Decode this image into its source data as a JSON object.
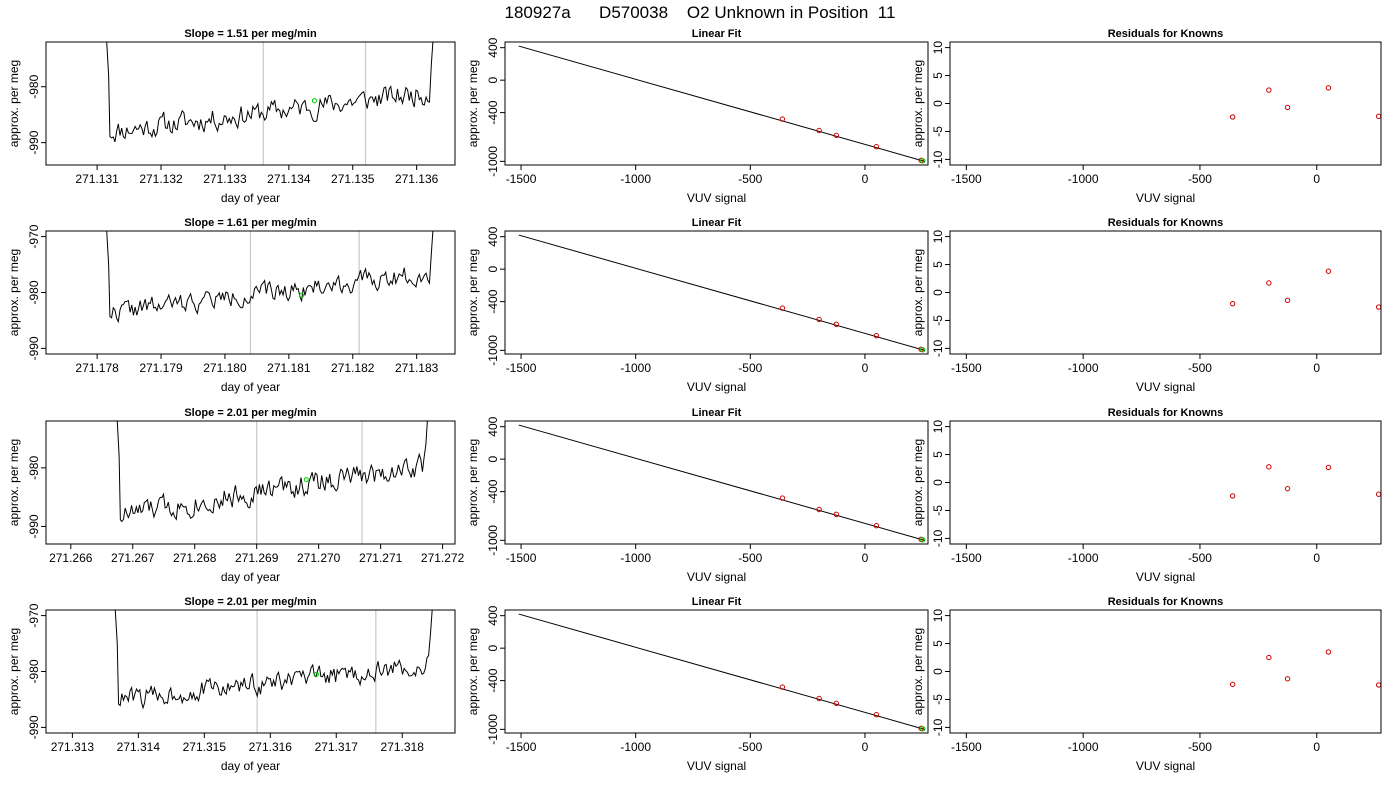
{
  "page_title": "180927a      D570038    O2 Unknown in Position  11",
  "colors": {
    "trace": "#000000",
    "marker": "#00cc00",
    "known_points": "#cc0000",
    "cycle_lines": "#c8c8c8",
    "fit_line": "#000000"
  },
  "chart_data": [
    {
      "row": 1,
      "panel": "timeseries",
      "type": "line",
      "title": "Slope =  1.51  per meg/min",
      "xlabel": "day of year",
      "ylabel": "approx. per meg",
      "xlim": [
        271.1302,
        271.1366
      ],
      "ylim": [
        -994,
        -972
      ],
      "xticks": [
        271.131,
        271.132,
        271.133,
        271.134,
        271.135,
        271.136
      ],
      "xtick_labels": [
        "271.131",
        "271.132",
        "271.133",
        "271.134",
        "271.135",
        "271.136"
      ],
      "yticks": [
        -980,
        -990
      ],
      "ytick_labels": [
        "-980",
        "-990"
      ],
      "cycle_lines": [
        271.1336,
        271.1352
      ],
      "trace": {
        "start": 271.1312,
        "end": 271.1362,
        "base": -988,
        "rise": 7,
        "amp": 3.2,
        "seed": 11
      },
      "marker": {
        "x": 271.1344,
        "y": -982.5
      }
    },
    {
      "row": 1,
      "panel": "fit",
      "type": "scatter",
      "title": "Linear Fit",
      "xlabel": "VUV signal",
      "ylabel": "approx. per meg",
      "xlim": [
        -1570,
        275
      ],
      "ylim": [
        -1045,
        470
      ],
      "xticks": [
        -1500,
        -1000,
        -500,
        0
      ],
      "xtick_labels": [
        "-1500",
        "-1000",
        "-500",
        "0"
      ],
      "yticks": [
        400,
        0,
        -400,
        -1000
      ],
      "ytick_labels": [
        "400",
        "0",
        "-400",
        "-1000"
      ],
      "fit_line": {
        "x": [
          -1510,
          260
        ],
        "y": [
          420,
          -1000
        ]
      },
      "knowns": {
        "x": [
          -360,
          -200,
          -125,
          50,
          245
        ],
        "y": [
          -480,
          -620,
          -680,
          -820,
          -988
        ]
      },
      "unknown": {
        "x": 252,
        "y": -993
      }
    },
    {
      "row": 1,
      "panel": "residuals",
      "type": "scatter",
      "title": "Residuals for Knowns",
      "xlabel": "VUV signal",
      "ylabel": "approx. per meg",
      "xlim": [
        -1570,
        275
      ],
      "ylim": [
        -11,
        11
      ],
      "xticks": [
        -1500,
        -1000,
        -500,
        0
      ],
      "xtick_labels": [
        "-1500",
        "-1000",
        "-500",
        "0"
      ],
      "yticks": [
        10,
        5,
        0,
        -5,
        -10
      ],
      "ytick_labels": [
        "10",
        "5",
        "0",
        "-5",
        "-10"
      ],
      "knowns": {
        "x": [
          -360,
          -205,
          -125,
          50,
          265
        ],
        "y": [
          -2.4,
          2.4,
          -0.7,
          2.8,
          -2.3
        ]
      }
    },
    {
      "row": 2,
      "panel": "timeseries",
      "type": "line",
      "title": "Slope =  1.61  per meg/min",
      "xlabel": "day of year",
      "ylabel": "approx. per meg",
      "xlim": [
        271.1772,
        271.1836
      ],
      "ylim": [
        -991,
        -969
      ],
      "xticks": [
        271.178,
        271.179,
        271.18,
        271.181,
        271.182,
        271.183
      ],
      "xtick_labels": [
        "271.178",
        "271.179",
        "271.180",
        "271.181",
        "271.182",
        "271.183"
      ],
      "yticks": [
        -970,
        -980,
        -990
      ],
      "ytick_labels": [
        "-970",
        "-980",
        "-990"
      ],
      "cycle_lines": [
        271.1804,
        271.1821
      ],
      "trace": {
        "start": 271.1782,
        "end": 271.1832,
        "base": -983.5,
        "rise": 7,
        "amp": 2.8,
        "seed": 22
      },
      "marker": {
        "x": 271.1812,
        "y": -980.5
      }
    },
    {
      "row": 2,
      "panel": "fit",
      "type": "scatter",
      "title": "Linear Fit",
      "xlabel": "VUV signal",
      "ylabel": "approx. per meg",
      "xlim": [
        -1570,
        275
      ],
      "ylim": [
        -1045,
        470
      ],
      "xticks": [
        -1500,
        -1000,
        -500,
        0
      ],
      "xtick_labels": [
        "-1500",
        "-1000",
        "-500",
        "0"
      ],
      "yticks": [
        400,
        0,
        -400,
        -1000
      ],
      "ytick_labels": [
        "400",
        "0",
        "-400",
        "-1000"
      ],
      "fit_line": {
        "x": [
          -1510,
          260
        ],
        "y": [
          420,
          -1000
        ]
      },
      "knowns": {
        "x": [
          -360,
          -200,
          -125,
          50,
          245
        ],
        "y": [
          -480,
          -620,
          -680,
          -820,
          -988
        ]
      },
      "unknown": {
        "x": 252,
        "y": -993
      }
    },
    {
      "row": 2,
      "panel": "residuals",
      "type": "scatter",
      "title": "Residuals for Knowns",
      "xlabel": "VUV signal",
      "ylabel": "approx. per meg",
      "xlim": [
        -1570,
        275
      ],
      "ylim": [
        -11,
        11
      ],
      "xticks": [
        -1500,
        -1000,
        -500,
        0
      ],
      "xtick_labels": [
        "-1500",
        "-1000",
        "-500",
        "0"
      ],
      "yticks": [
        10,
        5,
        0,
        -5,
        -10
      ],
      "ytick_labels": [
        "10",
        "5",
        "0",
        "-5",
        "-10"
      ],
      "knowns": {
        "x": [
          -360,
          -205,
          -125,
          50,
          265
        ],
        "y": [
          -2.0,
          1.7,
          -1.4,
          3.8,
          -2.6
        ]
      }
    },
    {
      "row": 3,
      "panel": "timeseries",
      "type": "line",
      "title": "Slope =  2.01  per meg/min",
      "xlabel": "day of year",
      "ylabel": "approx. per meg",
      "xlim": [
        271.2656,
        271.2722
      ],
      "ylim": [
        -993,
        -972
      ],
      "xticks": [
        271.266,
        271.267,
        271.268,
        271.269,
        271.27,
        271.271,
        271.272
      ],
      "xtick_labels": [
        "271.266",
        "271.267",
        "271.268",
        "271.269",
        "271.270",
        "271.271",
        "271.272"
      ],
      "yticks": [
        -980,
        -990
      ],
      "ytick_labels": [
        "-980",
        "-990"
      ],
      "cycle_lines": [
        271.269,
        271.2707
      ],
      "trace": {
        "start": 271.2668,
        "end": 271.2717,
        "base": -988,
        "rise": 8.5,
        "amp": 3.2,
        "seed": 33
      },
      "marker": {
        "x": 271.2698,
        "y": -982
      }
    },
    {
      "row": 3,
      "panel": "fit",
      "type": "scatter",
      "title": "Linear Fit",
      "xlabel": "VUV signal",
      "ylabel": "approx. per meg",
      "xlim": [
        -1570,
        275
      ],
      "ylim": [
        -1045,
        470
      ],
      "xticks": [
        -1500,
        -1000,
        -500,
        0
      ],
      "xtick_labels": [
        "-1500",
        "-1000",
        "-500",
        "0"
      ],
      "yticks": [
        400,
        0,
        -400,
        -1000
      ],
      "ytick_labels": [
        "400",
        "0",
        "-400",
        "-1000"
      ],
      "fit_line": {
        "x": [
          -1510,
          260
        ],
        "y": [
          420,
          -1000
        ]
      },
      "knowns": {
        "x": [
          -360,
          -200,
          -125,
          50,
          245
        ],
        "y": [
          -480,
          -620,
          -680,
          -820,
          -988
        ]
      },
      "unknown": {
        "x": 252,
        "y": -993
      }
    },
    {
      "row": 3,
      "panel": "residuals",
      "type": "scatter",
      "title": "Residuals for Knowns",
      "xlabel": "VUV signal",
      "ylabel": "approx. per meg",
      "xlim": [
        -1570,
        275
      ],
      "ylim": [
        -11,
        11
      ],
      "xticks": [
        -1500,
        -1000,
        -500,
        0
      ],
      "xtick_labels": [
        "-1500",
        "-1000",
        "-500",
        "0"
      ],
      "yticks": [
        10,
        5,
        0,
        -5,
        -10
      ],
      "ytick_labels": [
        "10",
        "5",
        "0",
        "-5",
        "-10"
      ],
      "knowns": {
        "x": [
          -360,
          -205,
          -125,
          50,
          265
        ],
        "y": [
          -2.4,
          2.8,
          -1.1,
          2.7,
          -2.1
        ]
      }
    },
    {
      "row": 4,
      "panel": "timeseries",
      "type": "line",
      "title": "Slope =  2.01  per meg/min",
      "xlabel": "day of year",
      "ylabel": "approx. per meg",
      "xlim": [
        271.3126,
        271.3188
      ],
      "ylim": [
        -991,
        -969
      ],
      "xticks": [
        271.313,
        271.314,
        271.315,
        271.316,
        271.317,
        271.318
      ],
      "xtick_labels": [
        "271.313",
        "271.314",
        "271.315",
        "271.316",
        "271.317",
        "271.318"
      ],
      "yticks": [
        -970,
        -980,
        -990
      ],
      "ytick_labels": [
        "-970",
        "-980",
        "-990"
      ],
      "cycle_lines": [
        271.3158,
        271.3176
      ],
      "trace": {
        "start": 271.3137,
        "end": 271.3184,
        "base": -985,
        "rise": 6,
        "amp": 3.0,
        "seed": 44
      },
      "marker": {
        "x": 271.3167,
        "y": -980.5
      }
    },
    {
      "row": 4,
      "panel": "fit",
      "type": "scatter",
      "title": "Linear Fit",
      "xlabel": "VUV signal",
      "ylabel": "approx. per meg",
      "xlim": [
        -1570,
        275
      ],
      "ylim": [
        -1045,
        470
      ],
      "xticks": [
        -1500,
        -1000,
        -500,
        0
      ],
      "xtick_labels": [
        "-1500",
        "-1000",
        "-500",
        "0"
      ],
      "yticks": [
        400,
        0,
        -400,
        -1000
      ],
      "ytick_labels": [
        "400",
        "0",
        "-400",
        "-1000"
      ],
      "fit_line": {
        "x": [
          -1510,
          260
        ],
        "y": [
          420,
          -1000
        ]
      },
      "knowns": {
        "x": [
          -360,
          -200,
          -125,
          50,
          245
        ],
        "y": [
          -480,
          -620,
          -680,
          -820,
          -988
        ]
      },
      "unknown": {
        "x": 252,
        "y": -993
      }
    },
    {
      "row": 4,
      "panel": "residuals",
      "type": "scatter",
      "title": "Residuals for Knowns",
      "xlabel": "VUV signal",
      "ylabel": "approx. per meg",
      "xlim": [
        -1570,
        275
      ],
      "ylim": [
        -11,
        11
      ],
      "xticks": [
        -1500,
        -1000,
        -500,
        0
      ],
      "xtick_labels": [
        "-1500",
        "-1000",
        "-500",
        "0"
      ],
      "yticks": [
        10,
        5,
        0,
        -5,
        -10
      ],
      "ytick_labels": [
        "10",
        "5",
        "0",
        "-5",
        "-10"
      ],
      "knowns": {
        "x": [
          -360,
          -205,
          -125,
          50,
          265
        ],
        "y": [
          -2.3,
          2.5,
          -1.3,
          3.5,
          -2.4
        ]
      }
    }
  ]
}
